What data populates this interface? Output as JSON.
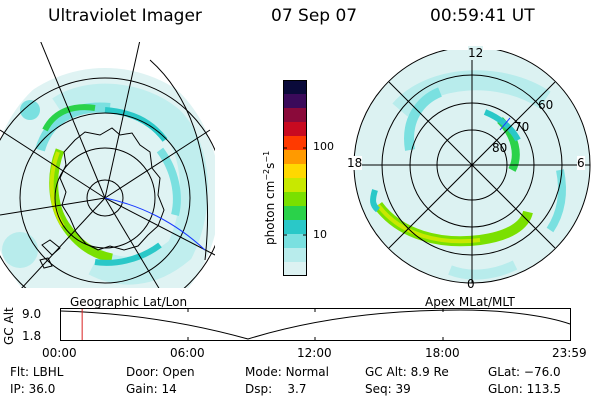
{
  "header": {
    "instrument": "Ultraviolet Imager",
    "date": "07 Sep 07",
    "time": "00:59:41 UT"
  },
  "left_map": {
    "caption": "Geographic Lat/Lon"
  },
  "right_map": {
    "caption": "Apex MLat/MLT",
    "mlt_labels": [
      "12",
      "18",
      "6",
      "0"
    ],
    "lat_labels": [
      "60",
      "70",
      "80"
    ]
  },
  "colorbar": {
    "unit_text": "photon cm",
    "unit_exp1": "−2",
    "unit_mid": "s",
    "unit_exp2": "−1",
    "tick_100": "100",
    "tick_10": "10",
    "colors": [
      "#0a0a3a",
      "#3a0a5a",
      "#8a0a3a",
      "#c80a20",
      "#ff3a00",
      "#ff9a00",
      "#ffd800",
      "#c8e800",
      "#7ae000",
      "#2ad24a",
      "#2ac8c8",
      "#7ae0e0",
      "#b8ecec",
      "#dcf2f2"
    ]
  },
  "timeline": {
    "axis_label": "GC Alt",
    "y_top": "9.0",
    "y_bottom": "1.8",
    "x_ticks": [
      "00:00",
      "06:00",
      "12:00",
      "18:00",
      "23:59"
    ],
    "marker_time": "00:59:41"
  },
  "info": {
    "flt_label": "Flt:",
    "flt_value": "LBHL",
    "ip_label": "IP:",
    "ip_value": "36.0",
    "door_label": "Door:",
    "door_value": "Open",
    "gain_label": "Gain:",
    "gain_value": "14",
    "mode_label": "Mode:",
    "mode_value": "Normal",
    "dsp_label": "Dsp:",
    "dsp_value": "3.7",
    "gcalt_label": "GC Alt:",
    "gcalt_value": "8.9 Re",
    "seq_label": "Seq:",
    "seq_value": "39",
    "glat_label": "GLat:",
    "glat_value": "−76.0",
    "glon_label": "GLon:",
    "glon_value": "113.5"
  }
}
